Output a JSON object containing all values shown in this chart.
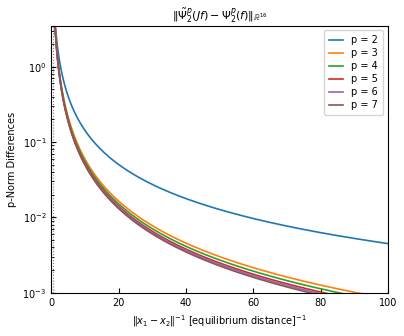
{
  "title": "$\\|\\tilde{\\Psi}_2^p(Jf) - \\Psi_2^p(f)\\|_{\\mathbb{R}^{16}}$",
  "xlabel": "$\\|x_1 - x_2\\|^{-1}$ [equilibrium distance]$^{-1}$",
  "ylabel": "p-Norm Differences",
  "xlim": [
    0,
    100
  ],
  "series": [
    {
      "p": 2,
      "color": "#1f77b4",
      "label": "p = 2",
      "A": 4.5,
      "alpha": 1.5
    },
    {
      "p": 3,
      "color": "#ff7f0e",
      "label": "p = 3",
      "A": 4.2,
      "alpha": 1.85
    },
    {
      "p": 4,
      "color": "#2ca02c",
      "label": "p = 4",
      "A": 4.1,
      "alpha": 1.87
    },
    {
      "p": 5,
      "color": "#d62728",
      "label": "p = 5",
      "A": 4.05,
      "alpha": 1.89
    },
    {
      "p": 6,
      "color": "#9467bd",
      "label": "p = 6",
      "A": 4.02,
      "alpha": 1.9
    },
    {
      "p": 7,
      "color": "#8c564b",
      "label": "p = 7",
      "A": 4.0,
      "alpha": 1.91
    }
  ],
  "x_start": 0.5,
  "x_end": 100,
  "ylim": [
    0.001,
    3.5
  ],
  "yticks": [
    0.001,
    0.01,
    0.1,
    1.0
  ],
  "xticks": [
    0,
    20,
    40,
    60,
    80,
    100
  ]
}
